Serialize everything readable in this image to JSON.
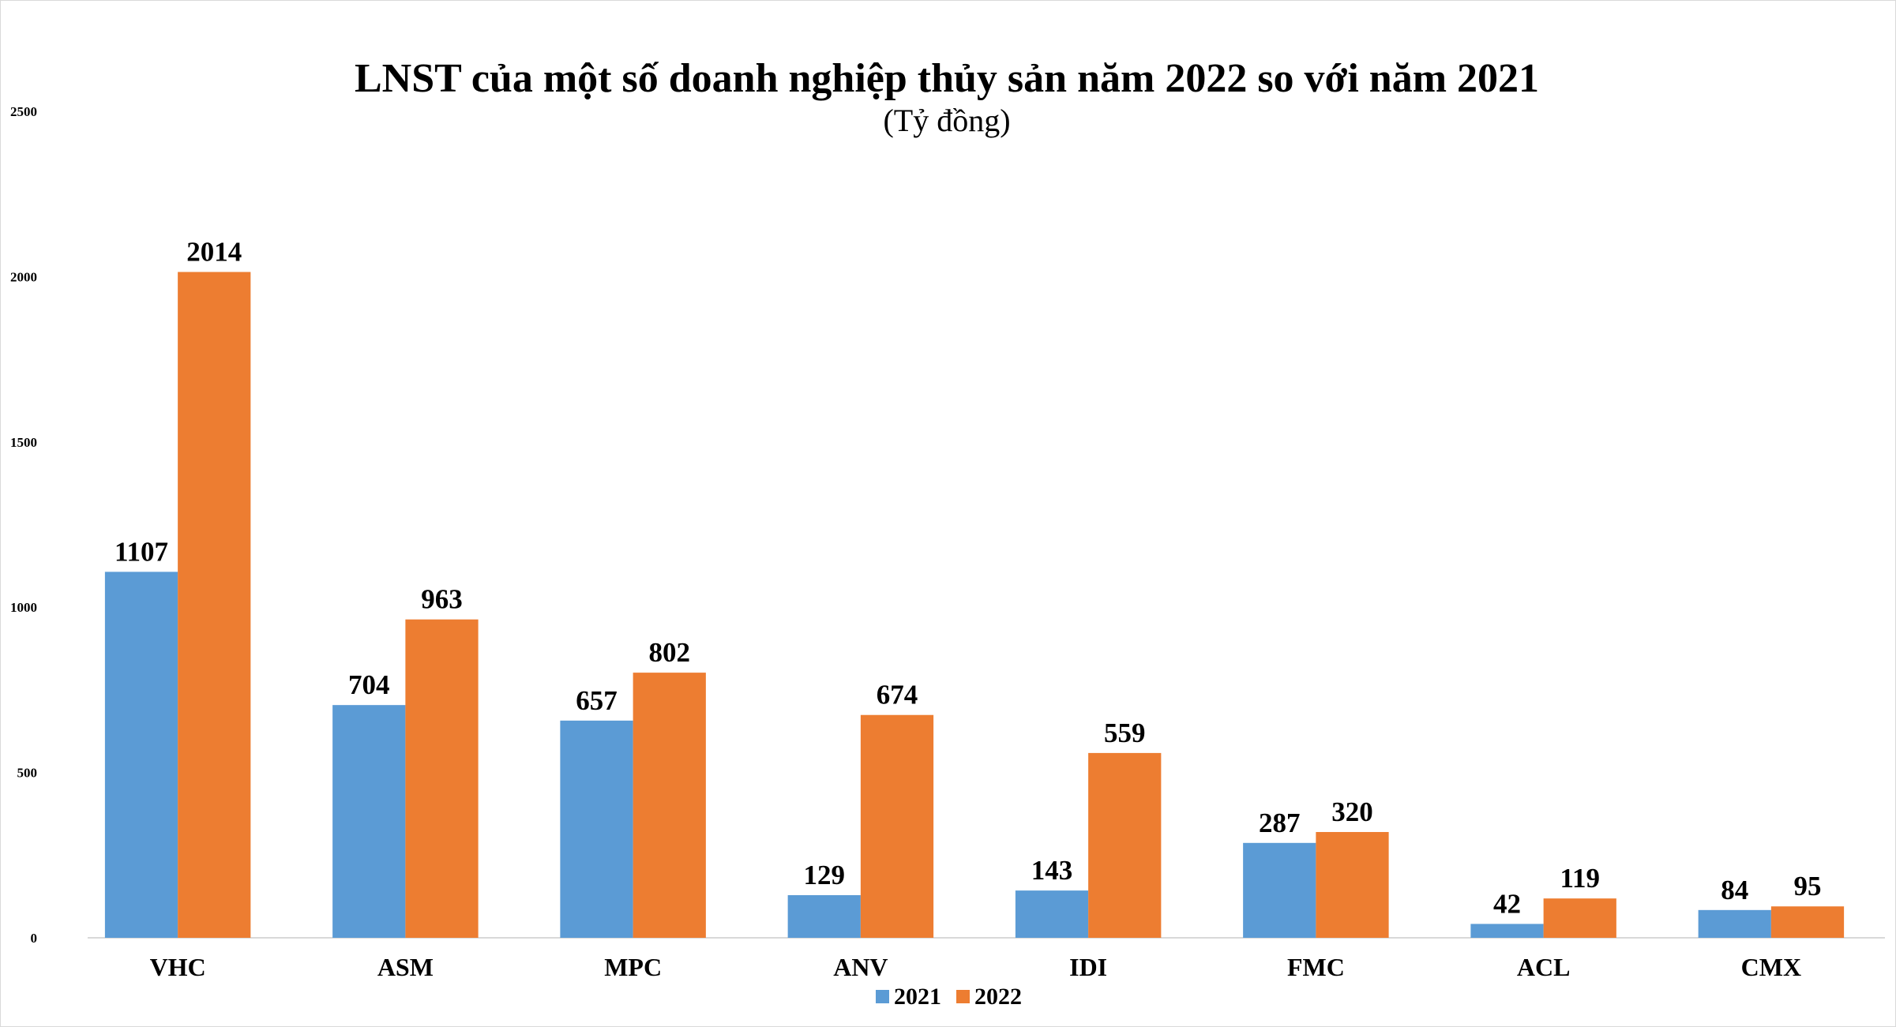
{
  "chart_data": {
    "type": "bar",
    "title": "LNST của một số doanh nghiệp thủy sản năm 2022 so với năm 2021",
    "subtitle": "(Tỷ đồng)",
    "categories": [
      "VHC",
      "ASM",
      "MPC",
      "ANV",
      "IDI",
      "FMC",
      "ACL",
      "CMX"
    ],
    "series": [
      {
        "name": "2021",
        "color": "#5b9bd5",
        "values": [
          1107,
          704,
          657,
          129,
          143,
          287,
          42,
          84
        ]
      },
      {
        "name": "2022",
        "color": "#ed7d31",
        "values": [
          2014,
          963,
          802,
          674,
          559,
          320,
          119,
          95
        ]
      }
    ],
    "ylim": [
      0,
      2500
    ],
    "yticks": [
      "0",
      "500",
      "1000",
      "1500",
      "2000",
      "2500"
    ],
    "grid": false,
    "legend_position": "bottom-center",
    "data_labels": true
  }
}
